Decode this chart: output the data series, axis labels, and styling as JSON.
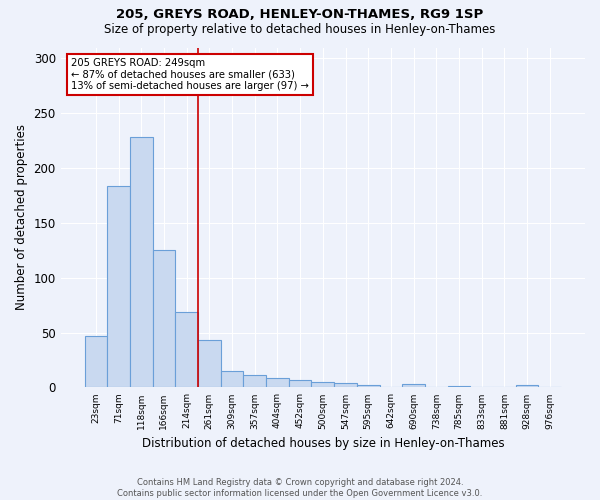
{
  "title1": "205, GREYS ROAD, HENLEY-ON-THAMES, RG9 1SP",
  "title2": "Size of property relative to detached houses in Henley-on-Thames",
  "xlabel": "Distribution of detached houses by size in Henley-on-Thames",
  "ylabel": "Number of detached properties",
  "categories": [
    "23sqm",
    "71sqm",
    "118sqm",
    "166sqm",
    "214sqm",
    "261sqm",
    "309sqm",
    "357sqm",
    "404sqm",
    "452sqm",
    "500sqm",
    "547sqm",
    "595sqm",
    "642sqm",
    "690sqm",
    "738sqm",
    "785sqm",
    "833sqm",
    "881sqm",
    "928sqm",
    "976sqm"
  ],
  "values": [
    47,
    184,
    228,
    125,
    69,
    43,
    15,
    11,
    9,
    7,
    5,
    4,
    2,
    0,
    3,
    0,
    1,
    0,
    0,
    2,
    0
  ],
  "bar_color": "#c9d9f0",
  "bar_edge_color": "#6a9fd8",
  "vline_index": 4.5,
  "annotation_text_line1": "205 GREYS ROAD: 249sqm",
  "annotation_text_line2": "← 87% of detached houses are smaller (633)",
  "annotation_text_line3": "13% of semi-detached houses are larger (97) →",
  "annotation_box_color": "#ffffff",
  "annotation_box_edge": "#cc0000",
  "vline_color": "#cc0000",
  "footer1": "Contains HM Land Registry data © Crown copyright and database right 2024.",
  "footer2": "Contains public sector information licensed under the Open Government Licence v3.0.",
  "bg_color": "#eef2fb",
  "ylim": [
    0,
    310
  ],
  "yticks": [
    0,
    50,
    100,
    150,
    200,
    250,
    300
  ]
}
